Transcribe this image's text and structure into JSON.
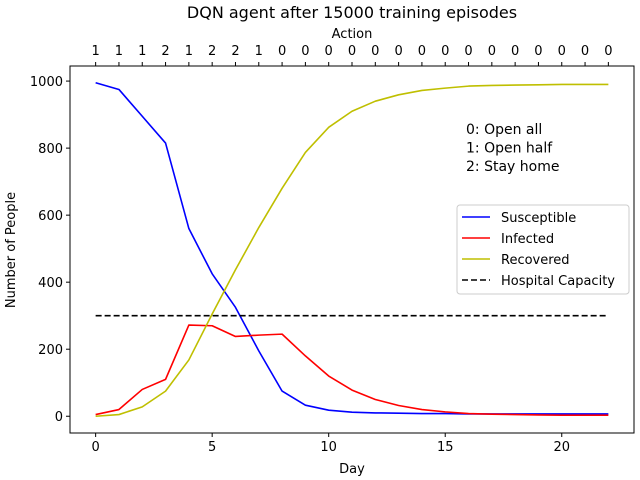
{
  "chart_data": {
    "type": "line",
    "title": "DQN agent after 15000 training episodes",
    "xlabel": "Day",
    "ylabel": "Number of People",
    "top_axis_label": "Action",
    "xlim": [
      -1.1,
      23.1
    ],
    "ylim": [
      -50,
      1045
    ],
    "x_ticks": [
      0,
      5,
      10,
      15,
      20
    ],
    "y_ticks": [
      0,
      200,
      400,
      600,
      800,
      1000
    ],
    "x": [
      0,
      1,
      2,
      3,
      4,
      5,
      6,
      7,
      8,
      9,
      10,
      11,
      12,
      13,
      14,
      15,
      16,
      17,
      18,
      19,
      20,
      21,
      22
    ],
    "actions": [
      1,
      1,
      1,
      2,
      1,
      2,
      2,
      1,
      0,
      0,
      0,
      0,
      0,
      0,
      0,
      0,
      0,
      0,
      0,
      0,
      0,
      0,
      0
    ],
    "series": [
      {
        "name": "Susceptible",
        "color": "#0000ff",
        "dash": "solid",
        "values": [
          995,
          975,
          895,
          815,
          560,
          425,
          325,
          195,
          75,
          33,
          18,
          12,
          10,
          9,
          8,
          8,
          7,
          7,
          7,
          7,
          7,
          7,
          7
        ]
      },
      {
        "name": "Infected",
        "color": "#ff0000",
        "dash": "solid",
        "values": [
          5,
          20,
          80,
          110,
          272,
          270,
          238,
          242,
          245,
          180,
          120,
          78,
          50,
          32,
          20,
          13,
          8,
          6,
          5,
          4,
          3,
          3,
          3
        ]
      },
      {
        "name": "Recovered",
        "color": "#bfbf00",
        "dash": "solid",
        "values": [
          0,
          5,
          28,
          75,
          168,
          305,
          437,
          563,
          680,
          787,
          862,
          910,
          940,
          959,
          972,
          979,
          985,
          987,
          988,
          989,
          990,
          990,
          990
        ]
      },
      {
        "name": "Hospital Capacity",
        "color": "#000000",
        "dash": "dashed",
        "values": [
          300,
          300,
          300,
          300,
          300,
          300,
          300,
          300,
          300,
          300,
          300,
          300,
          300,
          300,
          300,
          300,
          300,
          300,
          300,
          300,
          300,
          300,
          300
        ]
      }
    ],
    "legend_position": "center-right",
    "annotation_lines": [
      "0: Open all",
      "1: Open half",
      "2: Stay home"
    ],
    "grid": false
  }
}
